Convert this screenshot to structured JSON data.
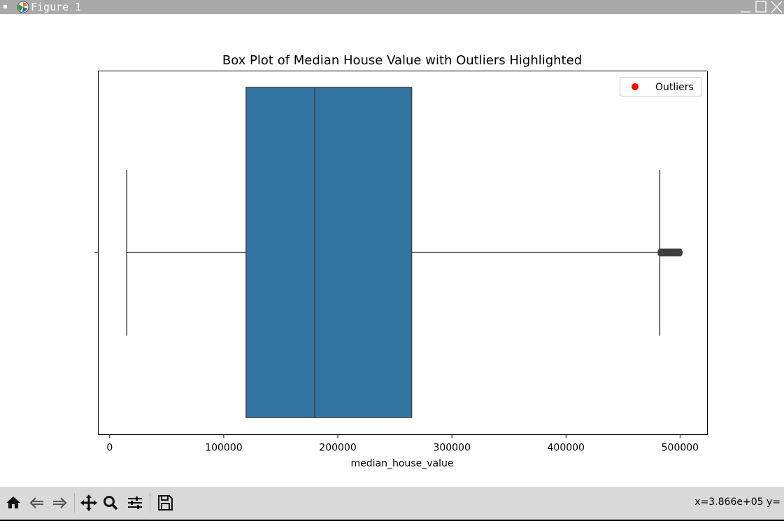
{
  "window": {
    "title": "Figure 1"
  },
  "toolbar": {
    "buttons": [
      {
        "name": "home",
        "icon": "home-icon"
      },
      {
        "name": "back",
        "icon": "arrow-left-icon"
      },
      {
        "name": "forward",
        "icon": "arrow-right-icon"
      },
      {
        "name": "pan",
        "icon": "move-icon"
      },
      {
        "name": "zoom",
        "icon": "magnifier-icon"
      },
      {
        "name": "configure-subplots",
        "icon": "sliders-icon"
      },
      {
        "name": "save",
        "icon": "floppy-disk-icon"
      }
    ],
    "coords": "x=3.866e+05 y="
  },
  "colors": {
    "box_fill": "#3274a1",
    "line": "#3f3f3f",
    "outlier_legend_marker": "#ff0000",
    "titlebar": "#a9a9a9",
    "toolbar": "#d9d9d9"
  },
  "chart_data": {
    "type": "box",
    "title": "Box Plot of Median House Value with Outliers Highlighted",
    "xlabel": "median_house_value",
    "ylabel": "",
    "xlim": [
      -10000,
      524000
    ],
    "xticks": [
      0,
      100000,
      200000,
      300000,
      400000,
      500000
    ],
    "xtick_labels": [
      "0",
      "100000",
      "200000",
      "300000",
      "400000",
      "500000"
    ],
    "orientation": "horizontal",
    "box": {
      "whisker_low": 14999,
      "q1": 119600,
      "median": 179700,
      "q3": 264725,
      "whisker_high": 482200
    },
    "outliers_range": [
      482500,
      500001
    ],
    "legend": {
      "entries": [
        "Outliers"
      ],
      "position": "upper right"
    },
    "grid": false
  }
}
